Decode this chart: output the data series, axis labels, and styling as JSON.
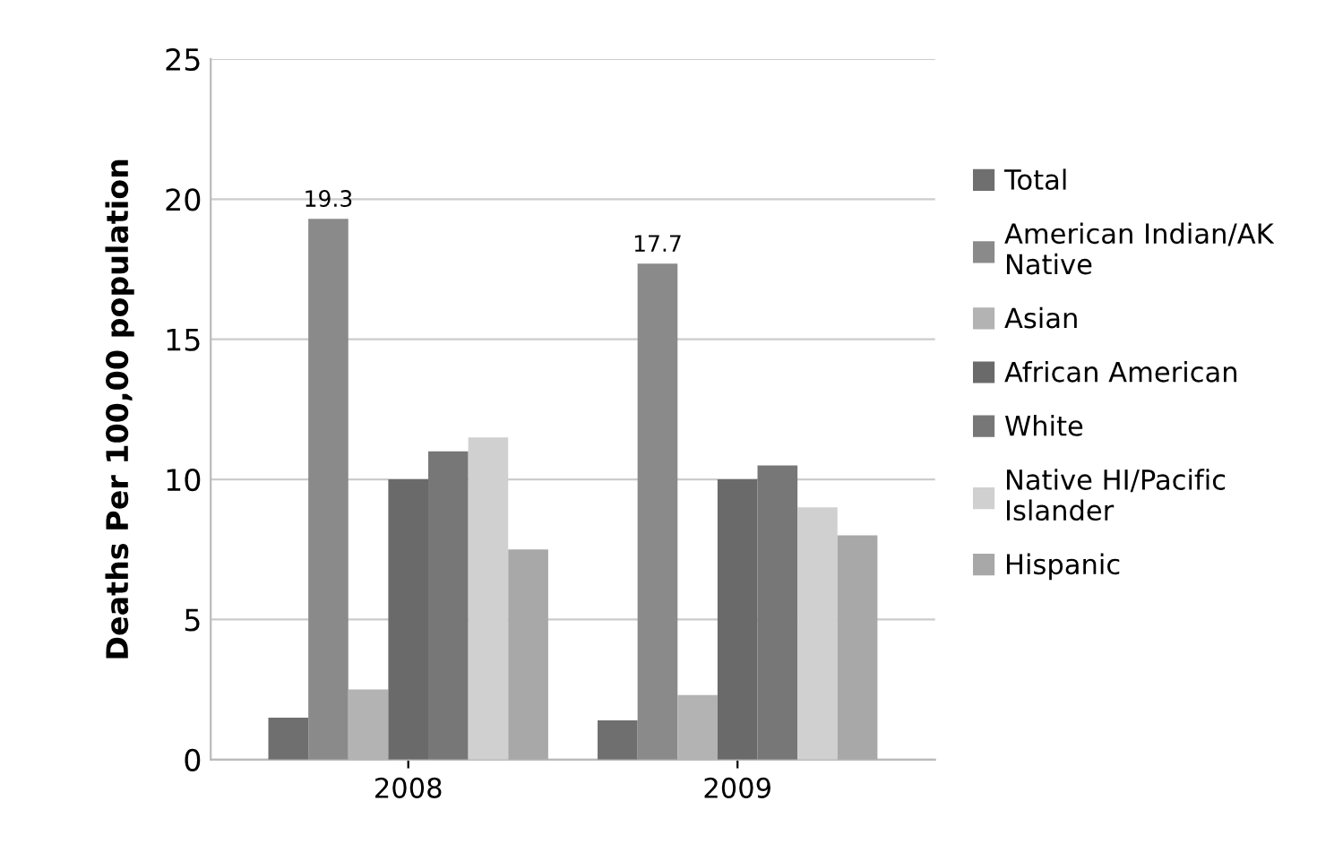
{
  "chart_data": {
    "type": "bar",
    "ylabel": "Deaths Per 100,00 population",
    "categories": [
      "2008",
      "2009"
    ],
    "ylim": [
      0,
      25
    ],
    "yticks": [
      0,
      5,
      10,
      15,
      20,
      25
    ],
    "grid": "y",
    "legend": "right",
    "series": [
      {
        "name": "Total",
        "color": "#6f6f6f",
        "values": [
          1.5,
          1.4
        ]
      },
      {
        "name": "American Indian/AK Native",
        "color": "#8a8a8a",
        "values": [
          19.3,
          17.7
        ],
        "value_labels": [
          "19.3",
          "17.7"
        ]
      },
      {
        "name": "Asian",
        "color": "#b3b3b3",
        "values": [
          2.5,
          2.3
        ]
      },
      {
        "name": "African American",
        "color": "#6a6a6a",
        "values": [
          10,
          10
        ]
      },
      {
        "name": "White",
        "color": "#777777",
        "values": [
          11,
          10.5
        ]
      },
      {
        "name": "Native HI/Pacific Islander",
        "color": "#d0d0d0",
        "values": [
          11.5,
          9
        ]
      },
      {
        "name": "Hispanic",
        "color": "#a8a8a8",
        "values": [
          7.5,
          8
        ]
      }
    ]
  }
}
